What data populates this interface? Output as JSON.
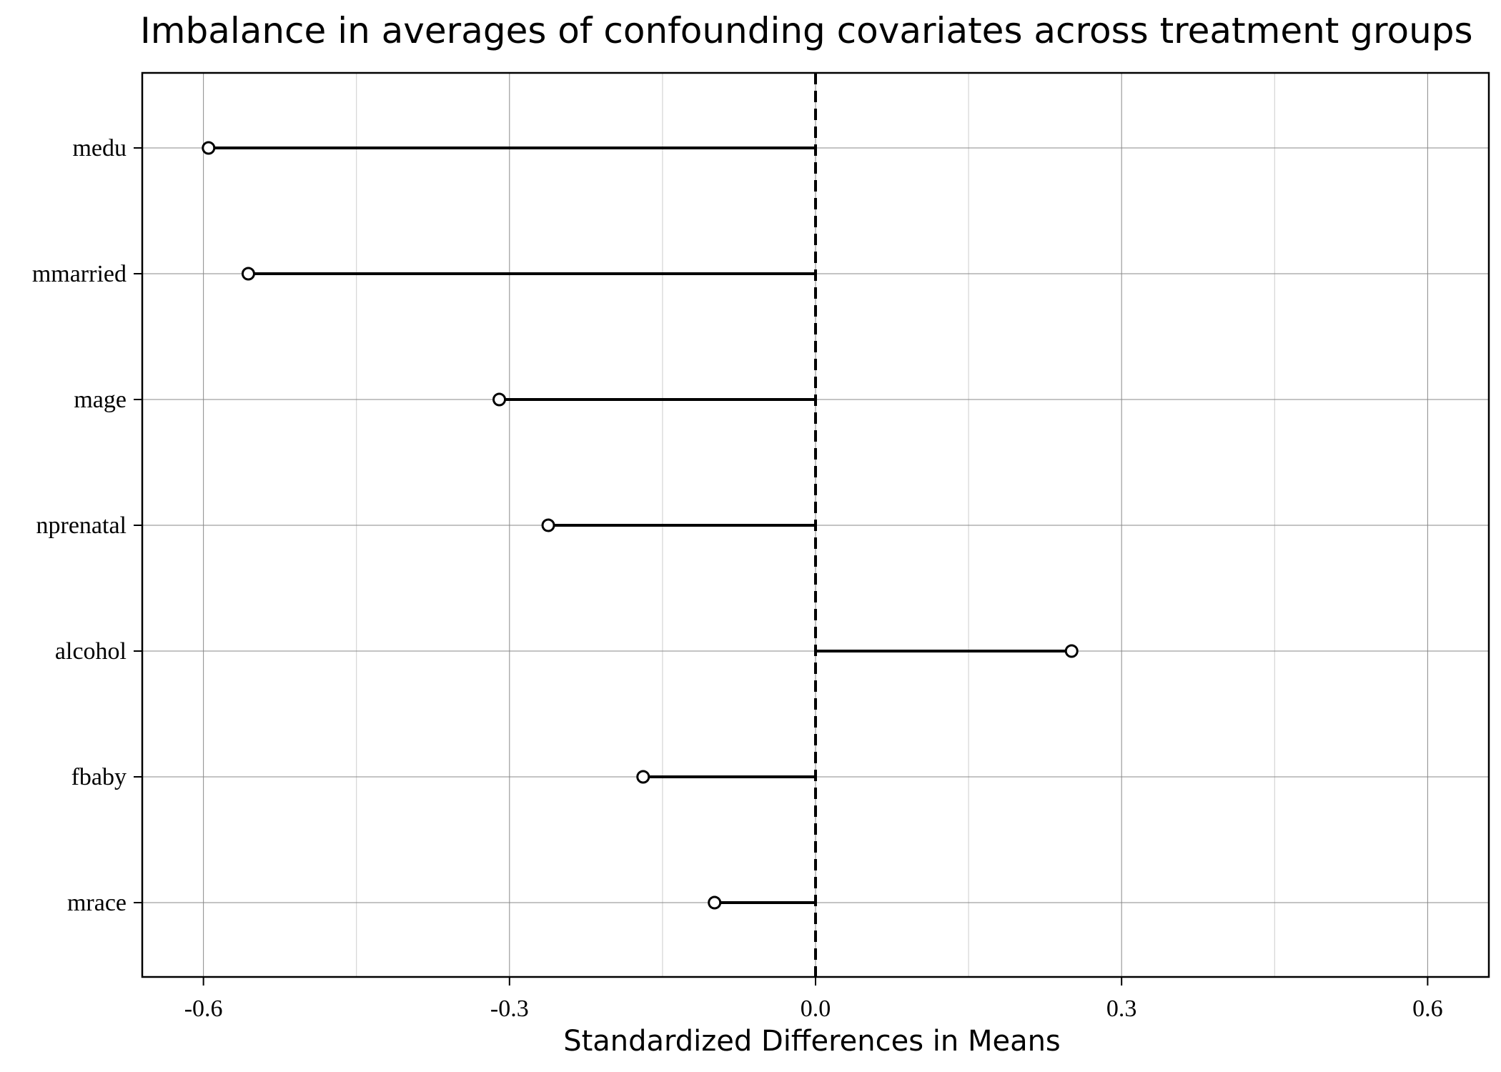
{
  "chart_data": {
    "type": "lollipop",
    "title": "Imbalance in averages of confounding covariates across treatment groups",
    "xlabel": "Standardized Differences in Means",
    "ylabel": "",
    "xlim": [
      -0.66,
      0.66
    ],
    "x_ticks": [
      -0.6,
      -0.3,
      0.0,
      0.3,
      0.6
    ],
    "x_tick_labels": [
      "-0.6",
      "-0.3",
      "0.0",
      "0.3",
      "0.6"
    ],
    "x_minor_ticks": [
      -0.45,
      -0.15,
      0.15,
      0.45
    ],
    "reference_line": 0.0,
    "grid": true,
    "categories": [
      "medu",
      "mmarried",
      "mage",
      "nprenatal",
      "alcohol",
      "fbaby",
      "mrace"
    ],
    "values": [
      -0.595,
      -0.556,
      -0.31,
      -0.262,
      0.251,
      -0.169,
      -0.099
    ]
  },
  "colors": {
    "stroke": "#000000",
    "marker_fill": "#ffffff",
    "grid_major": "#888888",
    "grid_minor": "#cccccc"
  }
}
